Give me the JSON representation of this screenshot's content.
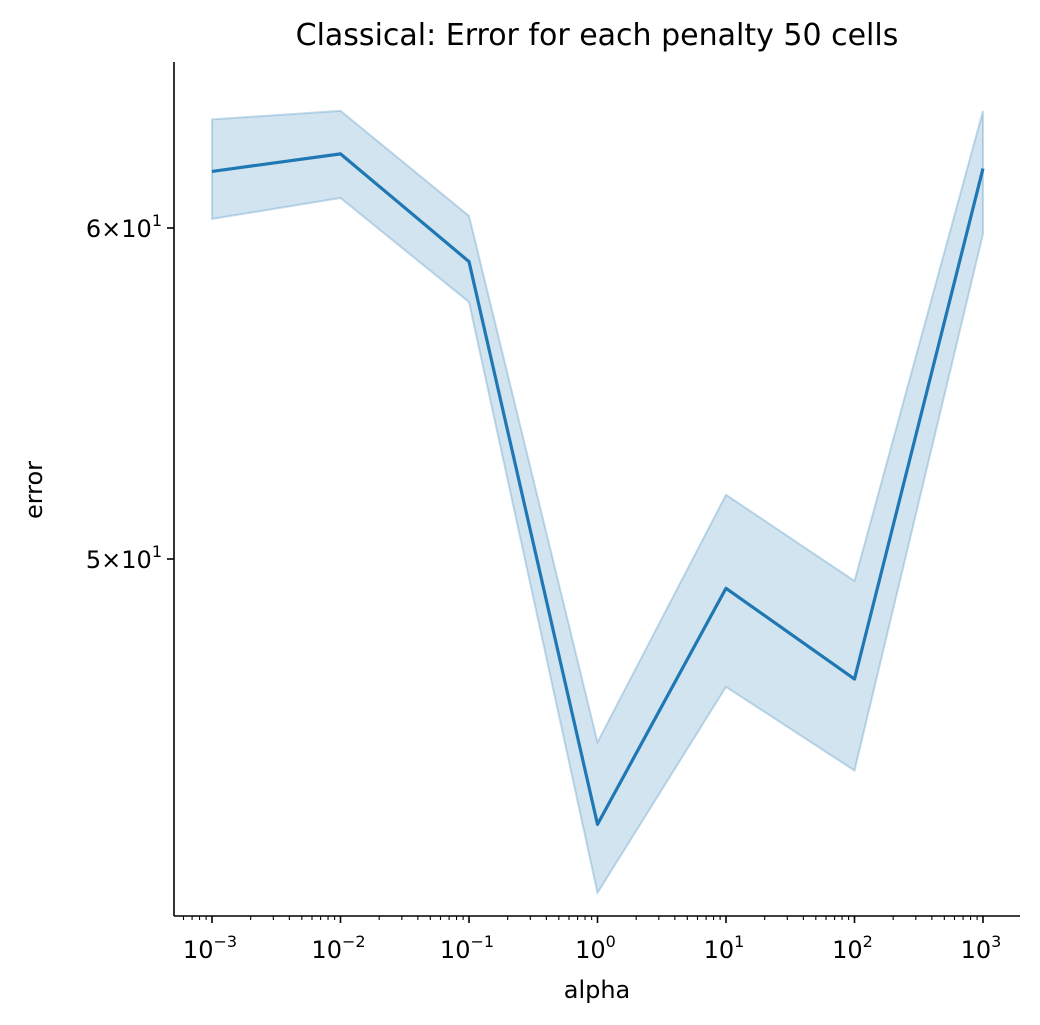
{
  "chart_data": {
    "type": "line",
    "title": "Classical: Error for each penalty 50 cells",
    "xlabel": "alpha",
    "ylabel": "error",
    "x_scale": "log",
    "y_scale": "log",
    "xlim": [
      0.0005,
      2000
    ],
    "ylim": [
      41.0,
      65.0
    ],
    "x_ticks": [
      {
        "value": 0.001,
        "base": "10",
        "exp": "−3"
      },
      {
        "value": 0.01,
        "base": "10",
        "exp": "−2"
      },
      {
        "value": 0.1,
        "base": "10",
        "exp": "−1"
      },
      {
        "value": 1,
        "base": "10",
        "exp": "0"
      },
      {
        "value": 10,
        "base": "10",
        "exp": "1"
      },
      {
        "value": 100,
        "base": "10",
        "exp": "2"
      },
      {
        "value": 1000,
        "base": "10",
        "exp": "3"
      }
    ],
    "y_ticks": [
      {
        "value": 50,
        "mant": "5",
        "base": "10",
        "exp": "1"
      },
      {
        "value": 60,
        "mant": "6",
        "base": "10",
        "exp": "1"
      }
    ],
    "series": [
      {
        "x": [
          0.001,
          0.01,
          0.1,
          1,
          10,
          100,
          1000
        ],
        "y": [
          61.9,
          62.5,
          58.9,
          43.2,
          49.2,
          46.8,
          62.0
        ],
        "ci_lower": [
          60.3,
          61.0,
          57.6,
          41.6,
          46.6,
          44.5,
          59.8
        ],
        "ci_upper": [
          63.7,
          64.0,
          60.4,
          45.2,
          51.8,
          49.4,
          64.0
        ]
      }
    ],
    "colors": {
      "line": "#1f77b4",
      "band": "#1f77b4"
    }
  }
}
